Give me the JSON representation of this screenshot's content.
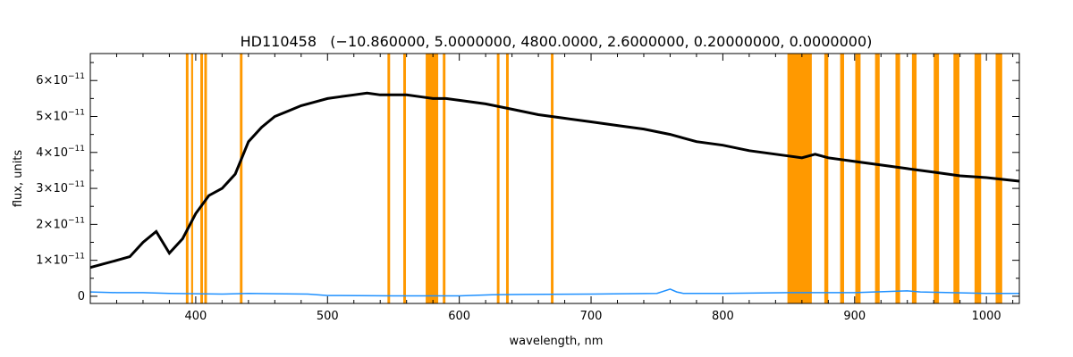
{
  "chart_data": {
    "type": "line",
    "title": "HD110458   (−10.860000, 5.0000000, 4800.0000, 2.6000000, 0.20000000, 0.0000000)",
    "xlabel": "wavelength, nm",
    "ylabel": "flux, units",
    "xlim": [
      320,
      1025
    ],
    "ylim": [
      -2e-12,
      6.75e-11
    ],
    "x_ticks": [
      400,
      500,
      600,
      700,
      800,
      900,
      1000
    ],
    "x_tick_labels": [
      "400",
      "500",
      "600",
      "700",
      "800",
      "900",
      "1000"
    ],
    "y_ticks": [
      0,
      1e-11,
      2e-11,
      3e-11,
      4e-11,
      5e-11,
      6e-11
    ],
    "y_tick_labels": [
      {
        "mantissa": "0",
        "exp": ""
      },
      {
        "mantissa": "1×10",
        "exp": "−11"
      },
      {
        "mantissa": "2×10",
        "exp": "−11"
      },
      {
        "mantissa": "3×10",
        "exp": "−11"
      },
      {
        "mantissa": "4×10",
        "exp": "−11"
      },
      {
        "mantissa": "5×10",
        "exp": "−11"
      },
      {
        "mantissa": "6×10",
        "exp": "−11"
      }
    ],
    "grid": false,
    "series": [
      {
        "color": "#000000",
        "x": [
          320,
          330,
          340,
          350,
          360,
          370,
          380,
          390,
          400,
          410,
          420,
          430,
          440,
          450,
          460,
          470,
          480,
          490,
          500,
          510,
          520,
          530,
          540,
          550,
          560,
          570,
          580,
          590,
          600,
          620,
          640,
          660,
          680,
          700,
          720,
          740,
          760,
          780,
          800,
          820,
          840,
          850,
          860,
          870,
          880,
          900,
          920,
          940,
          960,
          980,
          1000,
          1025
        ],
        "values": [
          8e-12,
          9e-12,
          1e-11,
          1.1e-11,
          1.5e-11,
          1.8e-11,
          1.2e-11,
          1.6e-11,
          2.3e-11,
          2.8e-11,
          3e-11,
          3.4e-11,
          4.3e-11,
          4.7e-11,
          5e-11,
          5.15e-11,
          5.3e-11,
          5.4e-11,
          5.5e-11,
          5.55e-11,
          5.6e-11,
          5.65e-11,
          5.6e-11,
          5.6e-11,
          5.6e-11,
          5.55e-11,
          5.5e-11,
          5.5e-11,
          5.45e-11,
          5.35e-11,
          5.2e-11,
          5.05e-11,
          4.95e-11,
          4.85e-11,
          4.75e-11,
          4.65e-11,
          4.5e-11,
          4.3e-11,
          4.2e-11,
          4.05e-11,
          3.95e-11,
          3.9e-11,
          3.85e-11,
          3.95e-11,
          3.85e-11,
          3.75e-11,
          3.65e-11,
          3.55e-11,
          3.45e-11,
          3.35e-11,
          3.3e-11,
          3.2e-11
        ]
      },
      {
        "color": "#1e90ff",
        "x": [
          320,
          340,
          360,
          380,
          400,
          420,
          440,
          460,
          485,
          500,
          550,
          600,
          625,
          650,
          700,
          750,
          760,
          765,
          770,
          800,
          850,
          900,
          940,
          950,
          1000,
          1025
        ],
        "values": [
          1.2e-12,
          1e-12,
          1e-12,
          8e-13,
          7e-13,
          6e-13,
          8e-13,
          7e-13,
          6e-13,
          2e-13,
          1e-13,
          1e-13,
          4e-13,
          5e-13,
          6e-13,
          8e-13,
          2e-12,
          1.2e-12,
          8e-13,
          8e-13,
          1e-12,
          1e-12,
          1.5e-12,
          1.2e-12,
          8e-13,
          8e-13
        ]
      }
    ],
    "masked_regions_color": "#ff9900",
    "masked_regions_nm": [
      [
        392.5,
        394.5
      ],
      [
        396.5,
        398.0
      ],
      [
        403.5,
        405.5
      ],
      [
        406.5,
        408.5
      ],
      [
        433.5,
        435.5
      ],
      [
        545.5,
        547.5
      ],
      [
        557.5,
        559.5
      ],
      [
        574.5,
        584.0
      ],
      [
        587.5,
        589.5
      ],
      [
        628.5,
        630.5
      ],
      [
        635.5,
        637.5
      ],
      [
        669.5,
        671.5
      ],
      [
        849.0,
        867.5
      ],
      [
        877.0,
        880.0
      ],
      [
        889.0,
        892.0
      ],
      [
        900.5,
        904.5
      ],
      [
        915.5,
        919.0
      ],
      [
        931.0,
        934.5
      ],
      [
        943.5,
        947.0
      ],
      [
        960.0,
        964.0
      ],
      [
        975.0,
        979.5
      ],
      [
        991.0,
        996.0
      ],
      [
        1007.0,
        1012.0
      ]
    ]
  }
}
